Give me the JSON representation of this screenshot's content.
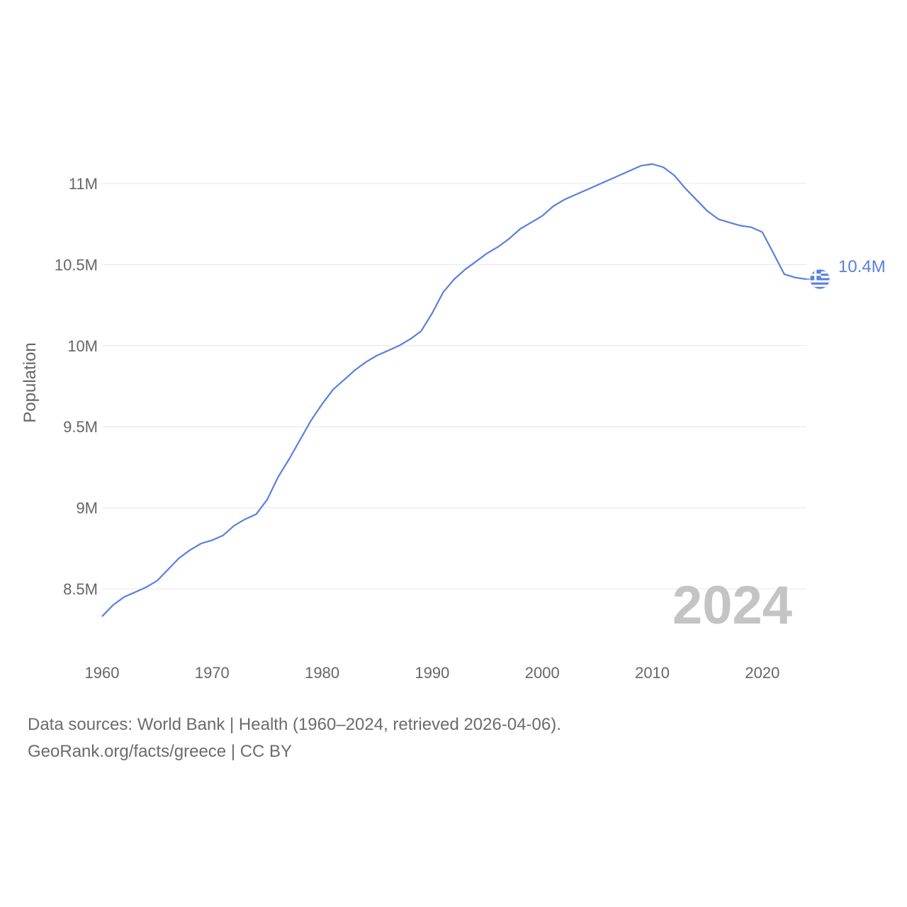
{
  "chart_data": {
    "type": "line",
    "title": "",
    "xlabel": "",
    "ylabel": "Population",
    "xlim": [
      1960,
      2024
    ],
    "ylim": [
      8330000,
      11240000
    ],
    "x_ticks": [
      1960,
      1970,
      1980,
      1990,
      2000,
      2010,
      2020
    ],
    "x_tick_labels": [
      "1960",
      "1970",
      "1980",
      "1990",
      "2000",
      "2010",
      "2020"
    ],
    "y_ticks": [
      8500000,
      9000000,
      9500000,
      10000000,
      10500000,
      11000000
    ],
    "y_tick_labels": [
      "8.5M",
      "9M",
      "9.5M",
      "10M",
      "10.5M",
      "11M"
    ],
    "grid": true,
    "series": [
      {
        "color": "#5b7fe0",
        "x": [
          1960,
          1961,
          1962,
          1963,
          1964,
          1965,
          1966,
          1967,
          1968,
          1969,
          1970,
          1971,
          1972,
          1973,
          1974,
          1975,
          1976,
          1977,
          1978,
          1979,
          1980,
          1981,
          1982,
          1983,
          1984,
          1985,
          1986,
          1987,
          1988,
          1989,
          1990,
          1991,
          1992,
          1993,
          1994,
          1995,
          1996,
          1997,
          1998,
          1999,
          2000,
          2001,
          2002,
          2003,
          2004,
          2005,
          2006,
          2007,
          2008,
          2009,
          2010,
          2011,
          2012,
          2013,
          2014,
          2015,
          2016,
          2017,
          2018,
          2019,
          2020,
          2021,
          2022,
          2023,
          2024
        ],
        "values": [
          8330000,
          8400000,
          8450000,
          8480000,
          8510000,
          8550000,
          8620000,
          8690000,
          8740000,
          8780000,
          8800000,
          8830000,
          8890000,
          8930000,
          8960000,
          9050000,
          9190000,
          9300000,
          9420000,
          9540000,
          9640000,
          9730000,
          9790000,
          9850000,
          9900000,
          9940000,
          9970000,
          10000000,
          10040000,
          10090000,
          10200000,
          10330000,
          10410000,
          10470000,
          10520000,
          10570000,
          10610000,
          10660000,
          10720000,
          10760000,
          10800000,
          10860000,
          10900000,
          10930000,
          10960000,
          10990000,
          11020000,
          11050000,
          11080000,
          11110000,
          11120000,
          11100000,
          11050000,
          10970000,
          10900000,
          10830000,
          10780000,
          10760000,
          10740000,
          10730000,
          10700000,
          10570000,
          10440000,
          10420000,
          10410000
        ]
      }
    ],
    "end_label": "10.4M",
    "year_watermark": "2024",
    "flag_colors": {
      "blue": "#5b7fe0",
      "white": "#ffffff"
    }
  },
  "footer": {
    "line1": "Data sources: World Bank | Health (1960–2024, retrieved 2026-04-06).",
    "line2": "GeoRank.org/facts/greece | CC BY"
  }
}
